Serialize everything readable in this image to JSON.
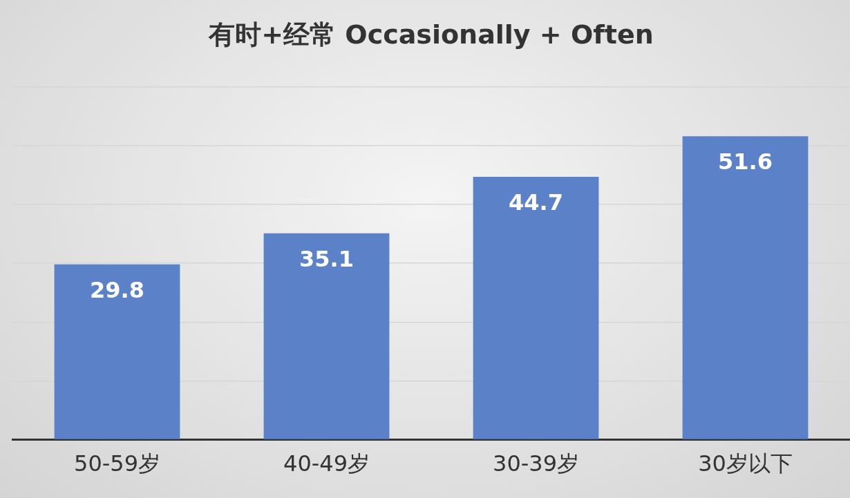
{
  "chart_data": {
    "type": "bar",
    "title": "有时+经常 Occasionally + Often",
    "categories": [
      "50-59岁",
      "40-49岁",
      "30-39岁",
      "30岁以下"
    ],
    "values": [
      29.8,
      35.1,
      44.7,
      51.6
    ],
    "color": "#5b82c9",
    "ylim": [
      0,
      60
    ],
    "yticks": [
      {
        "value": 0,
        "label": null
      },
      {
        "value": 10,
        "label": null
      },
      {
        "value": 20,
        "label": null
      },
      {
        "value": 30,
        "label": null
      },
      {
        "value": 40,
        "label": null
      },
      {
        "value": 50,
        "label": null
      },
      {
        "value": 60,
        "label": null
      }
    ],
    "tick_labels": "x",
    "grid": "y",
    "data_labels": true,
    "legend": false
  }
}
